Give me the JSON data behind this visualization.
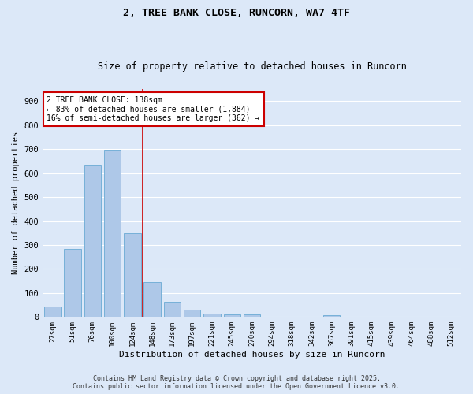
{
  "title_line1": "2, TREE BANK CLOSE, RUNCORN, WA7 4TF",
  "title_line2": "Size of property relative to detached houses in Runcorn",
  "xlabel": "Distribution of detached houses by size in Runcorn",
  "ylabel": "Number of detached properties",
  "categories": [
    "27sqm",
    "51sqm",
    "76sqm",
    "100sqm",
    "124sqm",
    "148sqm",
    "173sqm",
    "197sqm",
    "221sqm",
    "245sqm",
    "270sqm",
    "294sqm",
    "318sqm",
    "342sqm",
    "367sqm",
    "391sqm",
    "415sqm",
    "439sqm",
    "464sqm",
    "488sqm",
    "512sqm"
  ],
  "values": [
    44,
    284,
    632,
    698,
    350,
    145,
    65,
    30,
    13,
    12,
    10,
    0,
    0,
    0,
    9,
    0,
    0,
    0,
    0,
    0,
    0
  ],
  "bar_color": "#aec8e8",
  "bar_edge_color": "#6aaad4",
  "fig_bg_color": "#dce8f8",
  "axes_bg_color": "#dce8f8",
  "grid_color": "#ffffff",
  "redline_color": "#cc0000",
  "annotation_text_line1": "2 TREE BANK CLOSE: 138sqm",
  "annotation_text_line2": "← 83% of detached houses are smaller (1,884)",
  "annotation_text_line3": "16% of semi-detached houses are larger (362) →",
  "annotation_box_facecolor": "#ffffff",
  "annotation_box_edgecolor": "#cc0000",
  "ylim": [
    0,
    950
  ],
  "yticks": [
    0,
    100,
    200,
    300,
    400,
    500,
    600,
    700,
    800,
    900
  ],
  "footer_line1": "Contains HM Land Registry data © Crown copyright and database right 2025.",
  "footer_line2": "Contains public sector information licensed under the Open Government Licence v3.0."
}
